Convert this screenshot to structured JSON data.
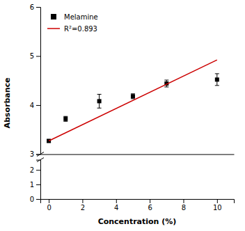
{
  "chart_data": [
    {
      "type": "scatter",
      "ylabel": "Absorbance",
      "xlim": [
        -0.5,
        11
      ],
      "ylim": [
        3.0,
        6.0
      ],
      "yticks": [
        3,
        4,
        5,
        6
      ],
      "tick_labels": "y",
      "grid": false,
      "legend": "upper left",
      "series": [
        {
          "name": "Melamine",
          "type": "scatter",
          "marker": "square",
          "color": "black",
          "x": [
            0,
            1,
            3,
            5,
            7,
            10
          ],
          "values": [
            3.27,
            3.72,
            4.08,
            4.18,
            4.44,
            4.52
          ],
          "errors": [
            0.03,
            0.05,
            0.14,
            0.05,
            0.07,
            0.12
          ]
        },
        {
          "name": "R²=0.893",
          "type": "line",
          "color": "#cc0000",
          "x": [
            0,
            10
          ],
          "values": [
            3.27,
            4.92
          ]
        }
      ]
    },
    {
      "type": "scatter",
      "xlabel": "Concentration (%)",
      "xlim": [
        -0.5,
        11
      ],
      "xticks": [
        0,
        2,
        4,
        6,
        8,
        10
      ],
      "ylim": [
        0,
        2.7
      ],
      "yticks": [
        0,
        1,
        2
      ],
      "grid": false
    }
  ]
}
